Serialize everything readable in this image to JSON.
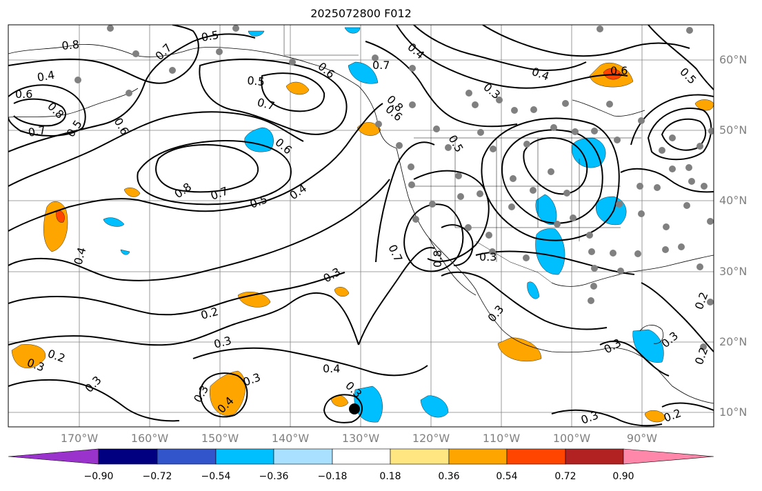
{
  "title": "2025072800 F012",
  "lat_labels": [
    "60°N",
    "50°N",
    "40°N",
    "30°N",
    "20°N",
    "10°N"
  ],
  "lon_labels": [
    "170°W",
    "160°W",
    "150°W",
    "140°W",
    "130°W",
    "120°W",
    "110°W",
    "100°W",
    "90°W"
  ],
  "colorbar": {
    "ticks": [
      "−0.90",
      "−0.72",
      "−0.54",
      "−0.36",
      "−0.18",
      "0.18",
      "0.36",
      "0.54",
      "0.72",
      "0.90"
    ],
    "colors": [
      "#9933cc",
      "#000080",
      "#3355cc",
      "#00bfff",
      "#a9e0ff",
      "#ffffff",
      "#ffe680",
      "#ffa500",
      "#ff4500",
      "#b22222",
      "#ff88aa"
    ]
  },
  "contour_labels": [
    "0.8",
    "0.7",
    "0.5",
    "0.4",
    "0.6",
    "0.8",
    "0.7",
    "0.5",
    "0.6",
    "0.5",
    "0.7",
    "0.6",
    "0.8",
    "0.7",
    "0.5",
    "0.4",
    "0.4",
    "0.3",
    "0.2",
    "0.3",
    "0.4",
    "0.3",
    "0.3",
    "0.4",
    "0.3",
    "0.3",
    "0.2",
    "0.3",
    "0.7",
    "0.8",
    "0.3",
    "0.3",
    "0.7",
    "0.6",
    "0.5",
    "0.4",
    "0.3",
    "0.6",
    "0.8",
    "0.6",
    "0.5",
    "0.4",
    "0.3",
    "0.2",
    "0.2",
    "0.3",
    "0.3",
    "0.2"
  ],
  "colors": {
    "contour": "#000000",
    "grid": "#808080",
    "coast": "#000000",
    "dots": "#808080",
    "axis_labels": "#808080"
  }
}
